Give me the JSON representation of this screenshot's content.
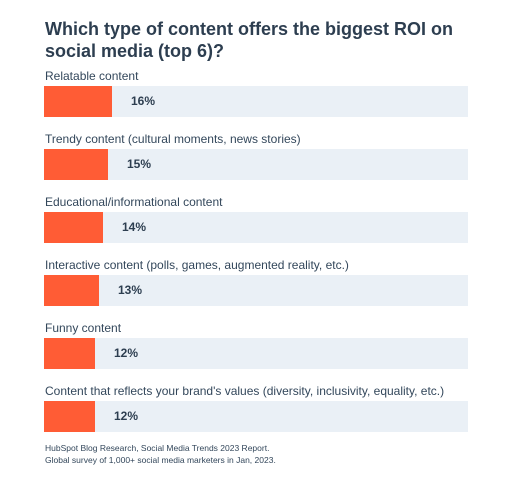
{
  "chart_data": {
    "type": "bar",
    "orientation": "horizontal",
    "title": "Which type of content offers the biggest ROI on social media (top 6)?",
    "categories": [
      "Relatable content",
      "Trendy content (cultural moments, news stories)",
      "Educational/informational content",
      "Interactive content (polls, games, augmented reality, etc.)",
      "Funny content",
      "Content that reflects your brand's values (diversity, inclusivity, equality, etc.)"
    ],
    "values": [
      16,
      15,
      14,
      13,
      12,
      12
    ],
    "value_labels": [
      "16%",
      "15%",
      "14%",
      "13%",
      "12%",
      "12%"
    ],
    "value_unit": "%",
    "xlim": [
      0,
      100
    ],
    "grid": false,
    "legend": "none",
    "colors": {
      "bar": "#ff5c35",
      "track": "#eaf0f6",
      "text": "#33475b"
    }
  },
  "source": {
    "line1": "HubSpot Blog Research, Social Media Trends 2023 Report.",
    "line2": "Global survey of 1,000+ social media marketers in Jan, 2023."
  }
}
